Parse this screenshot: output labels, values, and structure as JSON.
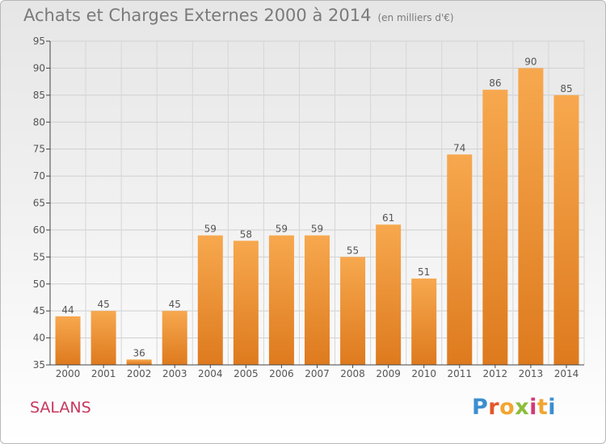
{
  "header": {
    "title": "Achats et Charges Externes 2000 à 2014",
    "subtitle": "(en milliers d'€)"
  },
  "footer": {
    "commune": "SALANS",
    "logo": {
      "letters": [
        "P",
        "r",
        "o",
        "x",
        "i",
        "t",
        "i"
      ],
      "colors": [
        "#3b8ed0",
        "#e5562b",
        "#f2a531",
        "#8bbd3a",
        "#d23a7a",
        "#f2a531",
        "#3b8ed0"
      ]
    }
  },
  "colors": {
    "bar_light": "#f7a84e",
    "bar_dark": "#de7a1e",
    "axis": "#444444",
    "grid": "#cccccc"
  },
  "chart_data": {
    "type": "bar",
    "title": "Achats et Charges Externes 2000 à 2014",
    "subtitle": "(en milliers d'€)",
    "categories": [
      "2000",
      "2001",
      "2002",
      "2003",
      "2004",
      "2005",
      "2006",
      "2007",
      "2008",
      "2009",
      "2010",
      "2011",
      "2012",
      "2013",
      "2014"
    ],
    "values": [
      44,
      45,
      36,
      45,
      59,
      58,
      59,
      59,
      55,
      61,
      51,
      74,
      86,
      90,
      85
    ],
    "ylim": [
      35,
      95
    ],
    "yticks": [
      35,
      40,
      45,
      50,
      55,
      60,
      65,
      70,
      75,
      80,
      85,
      90,
      95
    ],
    "grid": true,
    "data_labels": true
  }
}
